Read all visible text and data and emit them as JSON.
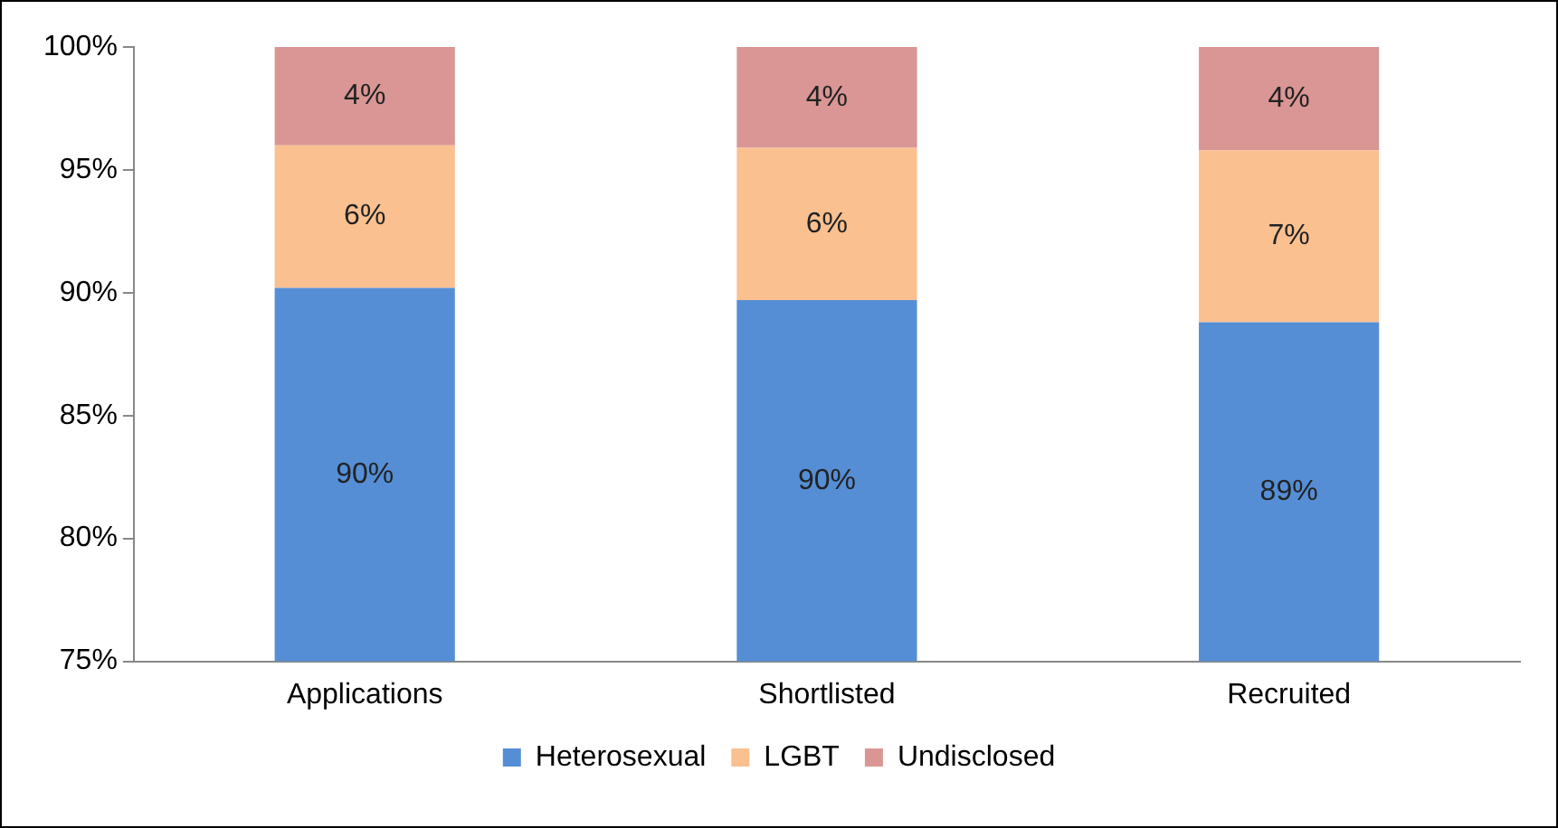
{
  "chart_data": {
    "type": "bar",
    "categories": [
      "Applications",
      "Shortlisted",
      "Recruited"
    ],
    "series": [
      {
        "name": "Heterosexual",
        "color": "#558ed5",
        "values": [
          90.2,
          89.7,
          88.8
        ],
        "base": [
          0,
          0,
          0
        ],
        "value_labels": [
          "90%",
          "90%",
          "89%"
        ]
      },
      {
        "name": "LGBT",
        "color": "#fac090",
        "values": [
          5.8,
          6.2,
          7.0
        ],
        "base": [
          90.2,
          89.7,
          88.8
        ],
        "value_labels": [
          "6%",
          "6%",
          "7%"
        ]
      },
      {
        "name": "Undisclosed",
        "color": "#d99694",
        "values": [
          4.0,
          4.1,
          4.2
        ],
        "base": [
          96.0,
          95.9,
          95.8
        ],
        "value_labels": [
          "4%",
          "4%",
          "4%"
        ]
      }
    ],
    "ylim": [
      75,
      100
    ],
    "yticks": [
      {
        "value": 75,
        "label": "75%"
      },
      {
        "value": 80,
        "label": "80%"
      },
      {
        "value": 85,
        "label": "85%"
      },
      {
        "value": 90,
        "label": "90%"
      },
      {
        "value": 95,
        "label": "95%"
      },
      {
        "value": 100,
        "label": "100%"
      }
    ],
    "grid": false,
    "legend": "bottom"
  }
}
